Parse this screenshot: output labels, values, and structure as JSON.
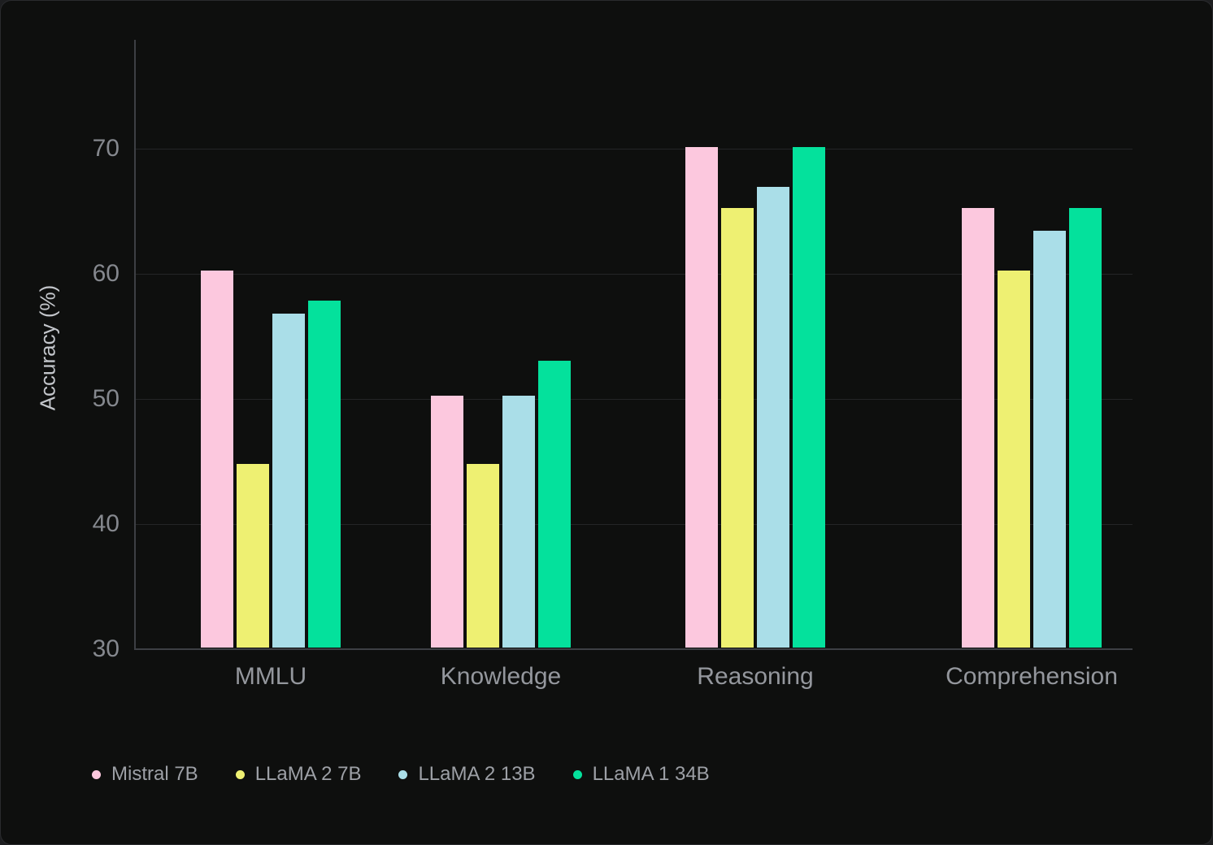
{
  "chart_data": {
    "type": "bar",
    "title": "",
    "xlabel": "",
    "ylabel": "Accuracy (%)",
    "categories": [
      "MMLU",
      "Knowledge",
      "Reasoning",
      "Comprehension"
    ],
    "series": [
      {
        "name": "Mistral 7B",
        "color": "#fcc8de",
        "values": [
          60.1,
          50.1,
          70.0,
          65.1
        ]
      },
      {
        "name": "LLaMA 2 7B",
        "color": "#eef072",
        "values": [
          44.7,
          44.7,
          65.1,
          60.1
        ]
      },
      {
        "name": "LLaMA 2 13B",
        "color": "#aadee8",
        "values": [
          56.7,
          50.1,
          66.8,
          63.3
        ]
      },
      {
        "name": "LLaMA 1 34B",
        "color": "#04e19c",
        "values": [
          57.7,
          52.9,
          70.0,
          65.1
        ]
      }
    ],
    "y_ticks": [
      30,
      40,
      50,
      60,
      70
    ],
    "ylim": [
      30,
      78.7
    ],
    "grid": true,
    "legend_position": "bottom-left",
    "background_color": "#0e0f0e",
    "gridline_color": "#242527",
    "axis_line_color": "#3d3f44"
  }
}
